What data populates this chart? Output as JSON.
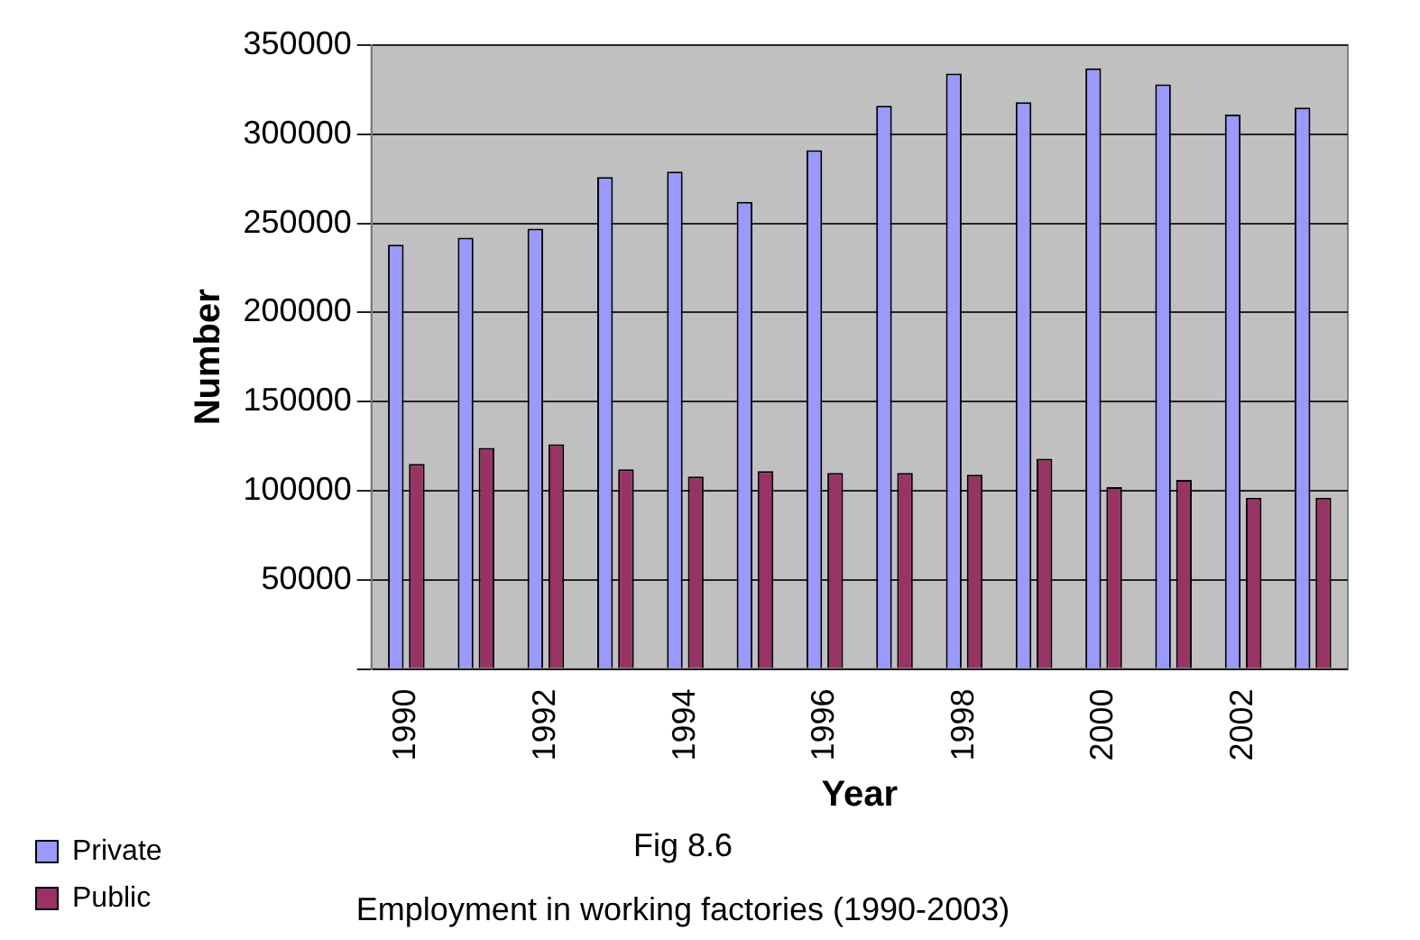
{
  "chart_data": {
    "type": "bar",
    "title": "Employment in working factories (1990-2003)",
    "subtitle": "Fig 8.6",
    "xlabel": "Year",
    "ylabel": "Number",
    "categories": [
      "1990",
      null,
      "1992",
      null,
      "1994",
      null,
      "1996",
      null,
      "1998",
      null,
      "2000",
      null,
      "2002",
      null
    ],
    "series": [
      {
        "name": "Private",
        "color": "#9999ff",
        "values": [
          238000,
          242000,
          247000,
          276000,
          279000,
          262000,
          291000,
          316000,
          334000,
          318000,
          337000,
          328000,
          311000,
          315000
        ]
      },
      {
        "name": "Public",
        "color": "#993366",
        "values": [
          115000,
          124000,
          126000,
          112000,
          108000,
          111000,
          110000,
          110000,
          109000,
          118000,
          102000,
          106000,
          96000,
          96000
        ]
      }
    ],
    "ylim": [
      0,
      350000
    ],
    "yticks": [
      {
        "value": 0,
        "label": null
      },
      50000,
      100000,
      150000,
      200000,
      250000,
      300000,
      350000
    ],
    "grid": "y",
    "legend": "bottom left"
  }
}
